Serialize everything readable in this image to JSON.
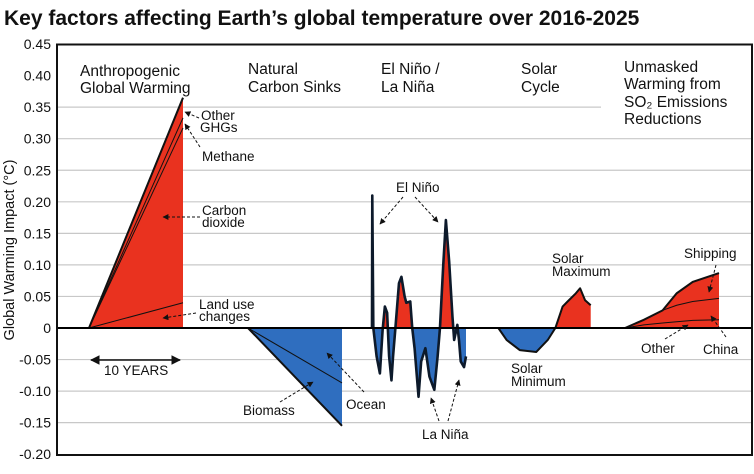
{
  "title": "Key factors affecting Earth’s global temperature over 2016-2025",
  "chart_data": {
    "type": "area",
    "title": "Key factors affecting Earth’s global temperature over 2016-2025",
    "ylabel": "Global Warming Impact (°C)",
    "ylim": [
      -0.2,
      0.45
    ],
    "yticks": [
      "0.45",
      "0.40",
      "0.35",
      "0.30",
      "0.25",
      "0.20",
      "0.15",
      "0.10",
      "0.05",
      "0",
      "-0.05",
      "-0.10",
      "-0.15",
      "-0.20"
    ],
    "ytick_values": [
      0.45,
      0.4,
      0.35,
      0.3,
      0.25,
      0.2,
      0.15,
      0.1,
      0.05,
      0,
      -0.05,
      -0.1,
      -0.15,
      -0.2
    ],
    "grid": true,
    "colors": {
      "warming": "#e9321f",
      "cooling": "#2f6ebf",
      "outline": "#111111",
      "grid": "#c8c8c8"
    },
    "scale_bar": "10 YEARS",
    "panels": [
      {
        "header": [
          "Anthropogenic",
          "Global Warming"
        ],
        "x": [
          2016,
          2026
        ],
        "stack": [
          {
            "name": "Land use changes",
            "values": [
              0,
              0.04
            ]
          },
          {
            "name": "Carbon dioxide",
            "values": [
              0,
              0.277
            ]
          },
          {
            "name": "Methane",
            "values": [
              0,
              0.016
            ]
          },
          {
            "name": "Other GHGs",
            "values": [
              0,
              0.032
            ]
          }
        ]
      },
      {
        "header": [
          "Natural",
          "Carbon Sinks"
        ],
        "x": [
          2016,
          2026
        ],
        "stack": [
          {
            "name": "Ocean",
            "values": [
              0,
              -0.087
            ]
          },
          {
            "name": "Biomass",
            "values": [
              0,
              -0.068
            ]
          }
        ]
      },
      {
        "header": [
          "El Niño /",
          "La Niña"
        ],
        "x": [
          2016.0,
          2016.03,
          2016.14,
          2016.49,
          2016.84,
          2017.13,
          2017.37,
          2017.61,
          2017.82,
          2018.07,
          2018.24,
          2018.49,
          2018.87,
          2019.13,
          2019.47,
          2019.65,
          2020.07,
          2020.28,
          2020.53,
          2020.95,
          2021.23,
          2021.68,
          2022.11,
          2022.63,
          2022.98,
          2023.23,
          2023.58,
          2023.86,
          2024.21,
          2024.56,
          2024.74,
          2025.08,
          2025.26,
          2025.44,
          2025.79,
          2026.0
        ],
        "values": [
          0,
          0.21,
          0,
          -0.045,
          -0.072,
          -0.003,
          0.034,
          0.024,
          -0.045,
          -0.083,
          -0.045,
          0,
          0.071,
          0.081,
          0.05,
          0.04,
          0.042,
          0,
          -0.032,
          -0.109,
          -0.053,
          -0.032,
          -0.077,
          -0.098,
          -0.045,
          0,
          0.1,
          0.171,
          0.105,
          0.018,
          -0.019,
          0.005,
          -0.02,
          -0.053,
          -0.062,
          -0.045
        ]
      },
      {
        "header": [
          "Solar",
          "Cycle"
        ],
        "x": [
          2016.14,
          2017.02,
          2018.42,
          2020.18,
          2021.4,
          2022.21,
          2022.98,
          2023.51,
          2024.39,
          2024.84,
          2025.37,
          2025.97
        ],
        "values": [
          0,
          -0.019,
          -0.035,
          -0.038,
          -0.019,
          0,
          0.034,
          0.042,
          0.055,
          0.063,
          0.044,
          0.036
        ]
      },
      {
        "header": [
          "Unmasked",
          "Warming from",
          "SO₂ Emissions",
          "Reductions"
        ],
        "x": [
          2016,
          2018,
          2020,
          2021.5,
          2023.2,
          2026
        ],
        "stack": [
          {
            "name": "Other",
            "values": [
              0,
              0.005,
              0.008,
              0.01,
              0.012,
              0.013
            ]
          },
          {
            "name": "China",
            "values": [
              0,
              0.008,
              0.02,
              0.026,
              0.03,
              0.034
            ]
          },
          {
            "name": "Shipping",
            "values": [
              0,
              0,
              0,
              0.019,
              0.031,
              0.04
            ]
          }
        ]
      }
    ],
    "annotations": {
      "other_ghgs": [
        "Other",
        "GHGs"
      ],
      "methane": "Methane",
      "carbon_dioxide": [
        "Carbon",
        "dioxide"
      ],
      "land_use": [
        "Land use",
        "changes"
      ],
      "biomass": "Biomass",
      "ocean": "Ocean",
      "el_nino": "El Niño",
      "la_nina": "La Niña",
      "solar_max": [
        "Solar",
        "Maximum"
      ],
      "solar_min": [
        "Solar",
        "Minimum"
      ],
      "shipping": "Shipping",
      "other": "Other",
      "china": "China"
    }
  }
}
